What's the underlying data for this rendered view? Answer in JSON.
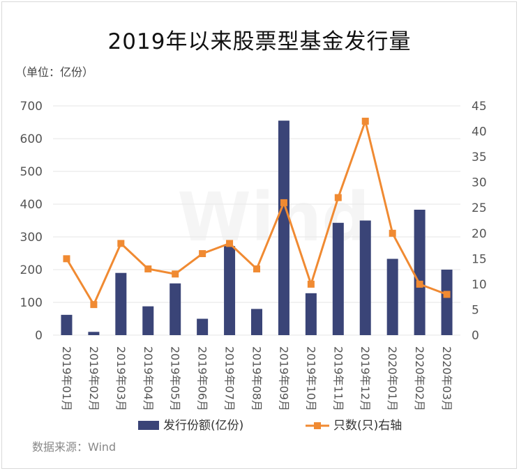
{
  "title": "2019年以来股票型基金发行量",
  "unit_label": "（单位：亿份）",
  "source_label": "数据来源：Wind",
  "watermark": "Wind",
  "colors": {
    "bar": "#3a4477",
    "line": "#f08a32",
    "grid": "#e6e6e6",
    "axis_text": "#555555"
  },
  "chart_data": {
    "type": "bar",
    "title": "2019年以来股票型基金发行量",
    "categories": [
      "2019年01月",
      "2019年02月",
      "2019年03月",
      "2019年04月",
      "2019年05月",
      "2019年06月",
      "2019年07月",
      "2019年08月",
      "2019年09月",
      "2019年10月",
      "2019年11月",
      "2019年12月",
      "2020年01月",
      "2020年02月",
      "2020年03月"
    ],
    "series": [
      {
        "name": "发行份额(亿份)",
        "type": "bar",
        "axis": "left",
        "values": [
          62,
          10,
          190,
          88,
          158,
          50,
          272,
          80,
          655,
          128,
          343,
          350,
          233,
          383,
          200
        ]
      },
      {
        "name": "只数(只)右轴",
        "type": "line",
        "axis": "right",
        "values": [
          15,
          6,
          18,
          13,
          12,
          16,
          18,
          13,
          26,
          10,
          27,
          42,
          20,
          10,
          8
        ]
      }
    ],
    "y_left": {
      "min": 0,
      "max": 700,
      "ticks": [
        0,
        100,
        200,
        300,
        400,
        500,
        600,
        700
      ]
    },
    "y_right": {
      "min": 0,
      "max": 45,
      "ticks": [
        0,
        5,
        10,
        15,
        20,
        25,
        30,
        35,
        40,
        45
      ]
    },
    "grid": true,
    "legend_position": "bottom"
  }
}
